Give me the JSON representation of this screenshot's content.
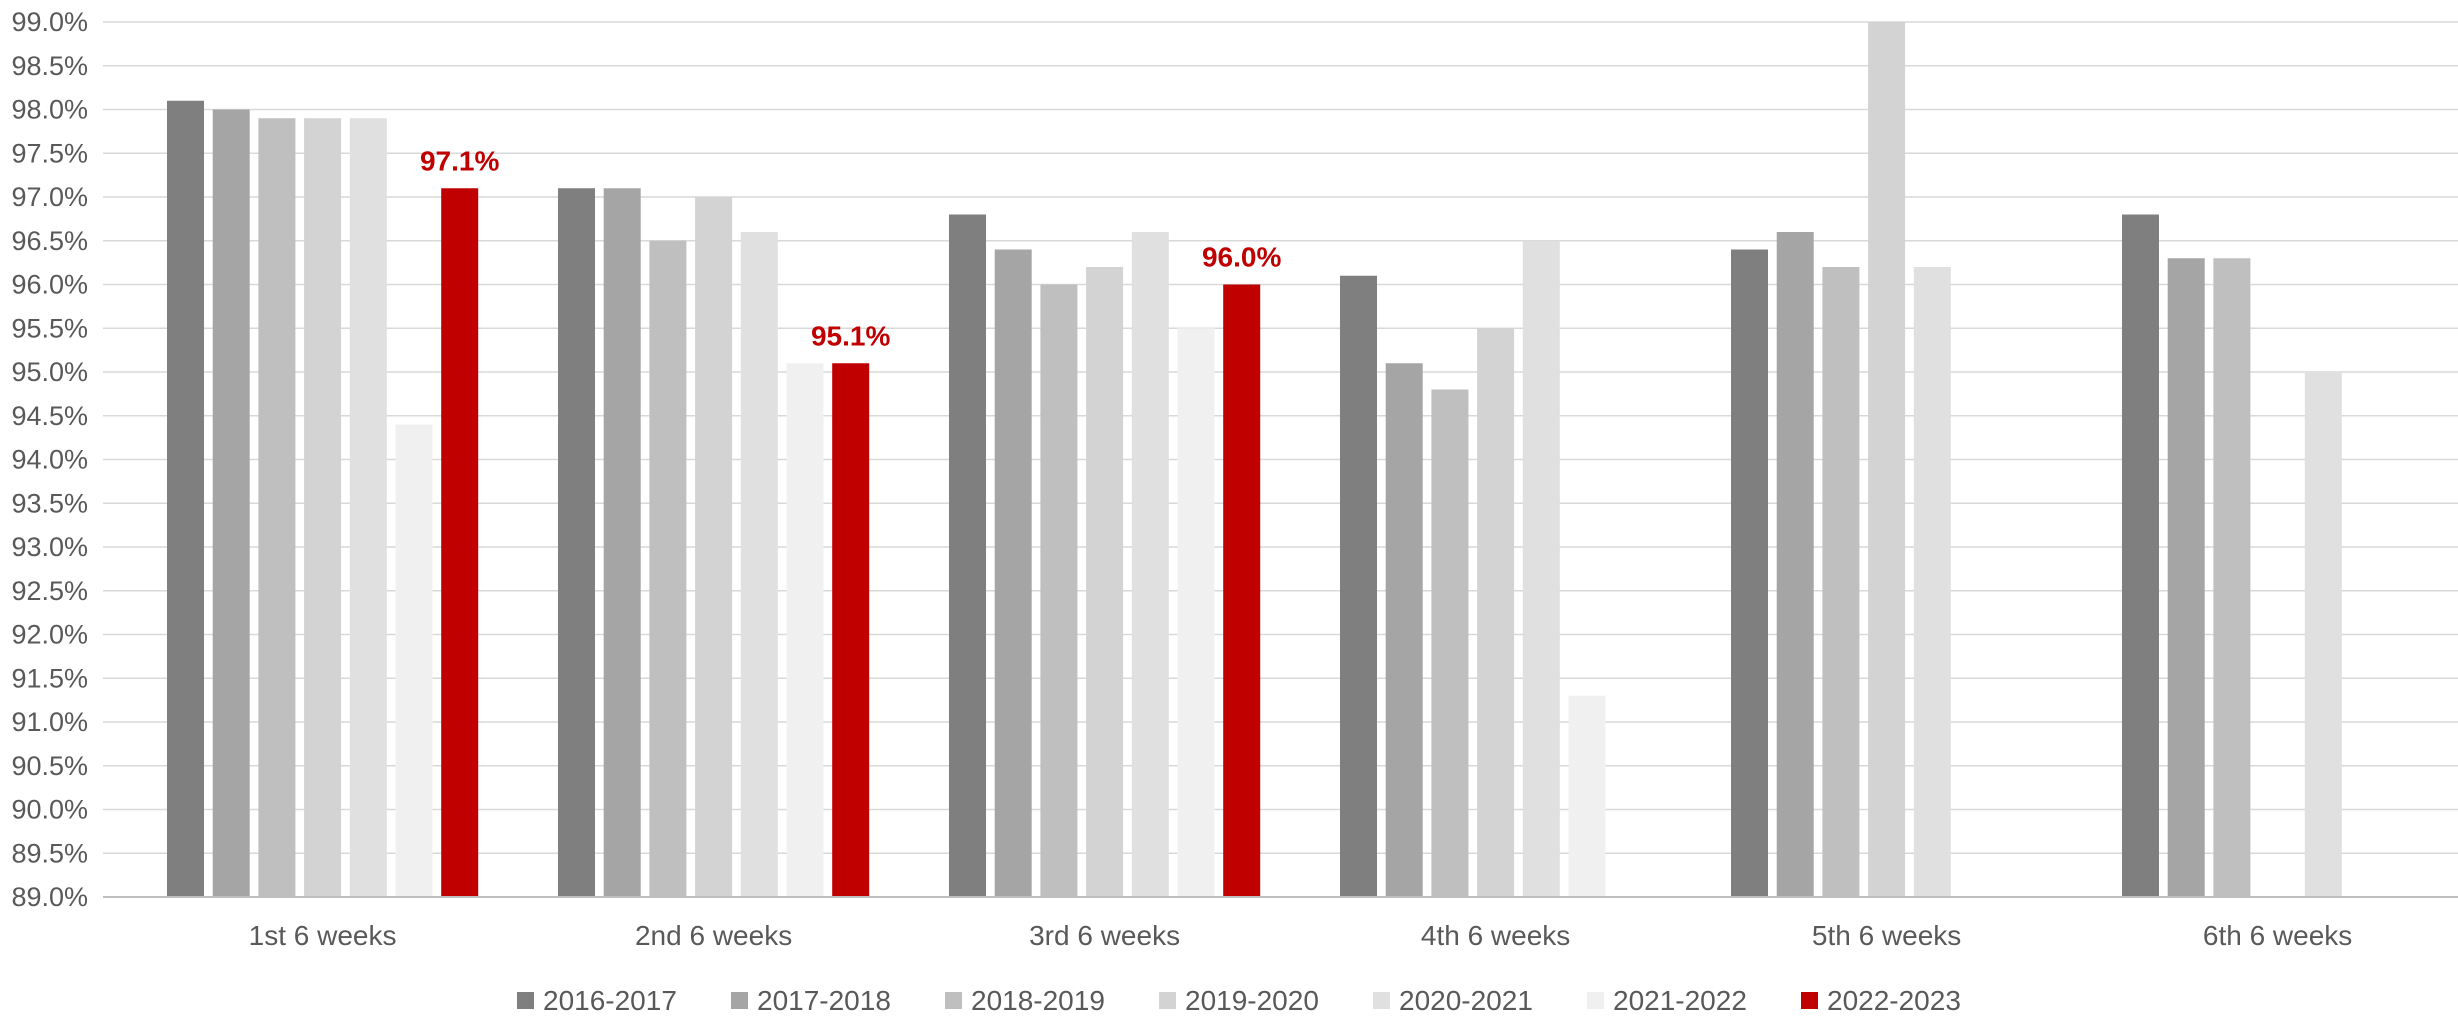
{
  "chart_data": {
    "type": "bar",
    "title": "",
    "xlabel": "",
    "ylabel": "",
    "ylim": [
      89.0,
      99.0
    ],
    "ytick_step": 0.5,
    "ytick_format": "percent_1dp",
    "grid": true,
    "legend_position": "bottom",
    "categories": [
      "1st 6 weeks",
      "2nd 6 weeks",
      "3rd 6 weeks",
      "4th 6 weeks",
      "5th 6 weeks",
      "6th 6 weeks"
    ],
    "series": [
      {
        "name": "2016-2017",
        "color": "#7f7f7f",
        "values": [
          98.1,
          97.1,
          96.8,
          96.1,
          96.4,
          96.8
        ]
      },
      {
        "name": "2017-2018",
        "color": "#a5a5a5",
        "values": [
          98.0,
          97.1,
          96.4,
          95.1,
          96.6,
          96.3
        ]
      },
      {
        "name": "2018-2019",
        "color": "#bfbfbf",
        "values": [
          97.9,
          96.5,
          96.0,
          94.8,
          96.2,
          96.3
        ]
      },
      {
        "name": "2019-2020",
        "color": "#d3d3d3",
        "values": [
          97.9,
          97.0,
          96.2,
          95.5,
          99.0,
          null
        ]
      },
      {
        "name": "2020-2021",
        "color": "#e0e0e0",
        "values": [
          97.9,
          96.6,
          96.6,
          96.5,
          96.2,
          95.0
        ]
      },
      {
        "name": "2021-2022",
        "color": "#f0f0f0",
        "values": [
          94.4,
          95.1,
          95.5,
          91.3,
          null,
          null
        ]
      },
      {
        "name": "2022-2023",
        "color": "#c00000",
        "values": [
          97.1,
          95.1,
          96.0,
          null,
          null,
          null
        ]
      }
    ],
    "data_labels": [
      {
        "series": "2022-2023",
        "category": "1st 6 weeks",
        "text": "97.1%",
        "color": "#c00000"
      },
      {
        "series": "2022-2023",
        "category": "2nd 6 weeks",
        "text": "95.1%",
        "color": "#c00000"
      },
      {
        "series": "2022-2023",
        "category": "3rd 6 weeks",
        "text": "96.0%",
        "color": "#c00000"
      }
    ]
  }
}
